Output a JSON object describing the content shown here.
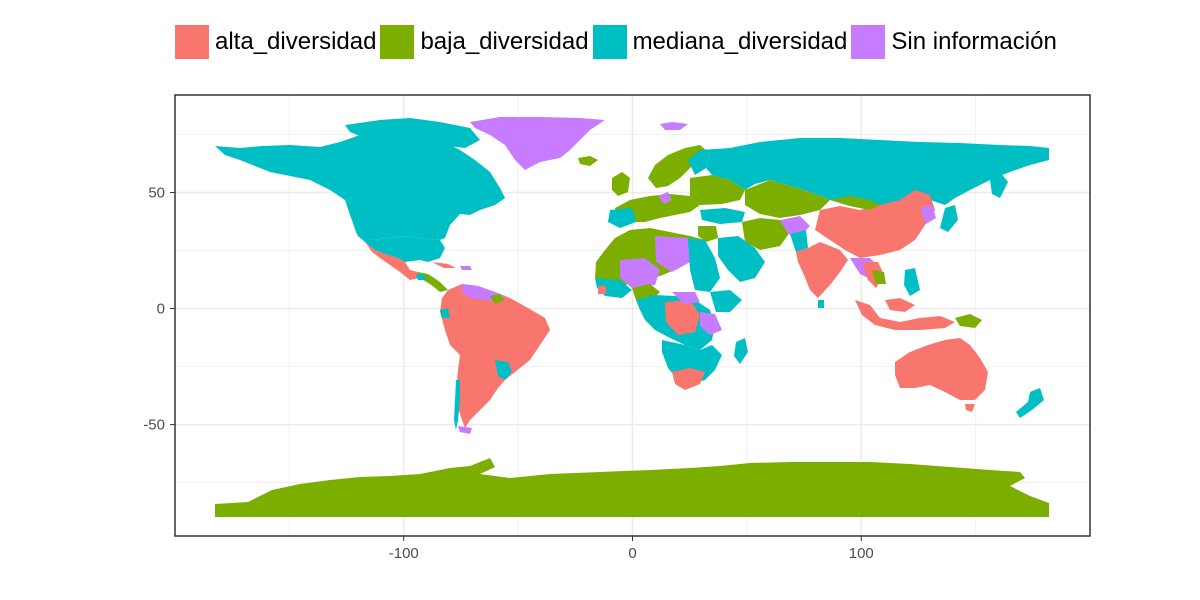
{
  "legend": {
    "items": [
      {
        "label": "alta_diversidad",
        "color": "#F8766D"
      },
      {
        "label": "baja_diversidad",
        "color": "#7CAE00"
      },
      {
        "label": "mediana_diversidad",
        "color": "#00BFC4"
      },
      {
        "label": "Sin información",
        "color": "#C77CFF"
      }
    ]
  },
  "chart_data": {
    "type": "map",
    "title": "",
    "xlabel": "",
    "ylabel": "",
    "xlim": [
      -200,
      200
    ],
    "ylim": [
      -98,
      92
    ],
    "x_ticks": [
      -100,
      0,
      100
    ],
    "x_tick_labels": [
      "-100",
      "0",
      "100"
    ],
    "y_ticks": [
      50,
      0,
      -50
    ],
    "y_tick_labels": [
      "50",
      "0",
      "-50"
    ],
    "grid": true,
    "legend_position": "top",
    "categories": {
      "alta_diversidad": "#F8766D",
      "baja_diversidad": "#7CAE00",
      "mediana_diversidad": "#00BFC4",
      "Sin información": "#C77CFF"
    }
  }
}
